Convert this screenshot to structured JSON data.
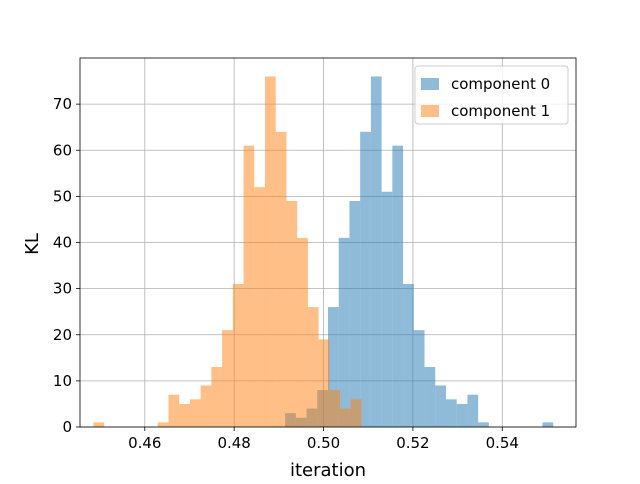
{
  "chart_data": {
    "type": "histogram",
    "title": "",
    "xlabel": "iteration",
    "ylabel": "KL",
    "xlim": [
      0.4455,
      0.5565
    ],
    "ylim": [
      0,
      80
    ],
    "xticks": [
      0.46,
      0.48,
      0.5,
      0.52,
      0.54
    ],
    "xtick_labels": [
      "0.46",
      "0.48",
      "0.50",
      "0.52",
      "0.54"
    ],
    "yticks": [
      0,
      10,
      20,
      30,
      40,
      50,
      60,
      70
    ],
    "ytick_labels": [
      "0",
      "10",
      "20",
      "30",
      "40",
      "50",
      "60",
      "70"
    ],
    "grid": true,
    "legend_position": "top-right",
    "alpha": 0.5,
    "series": [
      {
        "name": "component 0",
        "color": "#1f77b4",
        "bins": [
          {
            "x0": 0.4914,
            "x1": 0.4938,
            "count": 3
          },
          {
            "x0": 0.4938,
            "x1": 0.4962,
            "count": 2
          },
          {
            "x0": 0.4962,
            "x1": 0.4986,
            "count": 4
          },
          {
            "x0": 0.4986,
            "x1": 0.501,
            "count": 8
          },
          {
            "x0": 0.501,
            "x1": 0.5034,
            "count": 26
          },
          {
            "x0": 0.5034,
            "x1": 0.5058,
            "count": 41
          },
          {
            "x0": 0.5058,
            "x1": 0.5082,
            "count": 49
          },
          {
            "x0": 0.5082,
            "x1": 0.5106,
            "count": 64
          },
          {
            "x0": 0.5106,
            "x1": 0.513,
            "count": 76
          },
          {
            "x0": 0.513,
            "x1": 0.5154,
            "count": 51
          },
          {
            "x0": 0.5154,
            "x1": 0.5178,
            "count": 61
          },
          {
            "x0": 0.5178,
            "x1": 0.5202,
            "count": 31
          },
          {
            "x0": 0.5202,
            "x1": 0.5226,
            "count": 21
          },
          {
            "x0": 0.5226,
            "x1": 0.525,
            "count": 13
          },
          {
            "x0": 0.525,
            "x1": 0.5274,
            "count": 9
          },
          {
            "x0": 0.5274,
            "x1": 0.5298,
            "count": 6
          },
          {
            "x0": 0.5298,
            "x1": 0.5322,
            "count": 5
          },
          {
            "x0": 0.5322,
            "x1": 0.5346,
            "count": 7
          },
          {
            "x0": 0.5346,
            "x1": 0.537,
            "count": 1
          },
          {
            "x0": 0.549,
            "x1": 0.5514,
            "count": 1
          }
        ]
      },
      {
        "name": "component 1",
        "color": "#ff7f0e",
        "bins": [
          {
            "x0": 0.4485,
            "x1": 0.4509,
            "count": 1
          },
          {
            "x0": 0.4629,
            "x1": 0.4653,
            "count": 1
          },
          {
            "x0": 0.4653,
            "x1": 0.4677,
            "count": 7
          },
          {
            "x0": 0.4677,
            "x1": 0.4701,
            "count": 5
          },
          {
            "x0": 0.4701,
            "x1": 0.4725,
            "count": 6
          },
          {
            "x0": 0.4725,
            "x1": 0.4749,
            "count": 9
          },
          {
            "x0": 0.4749,
            "x1": 0.4773,
            "count": 13
          },
          {
            "x0": 0.4773,
            "x1": 0.4797,
            "count": 21
          },
          {
            "x0": 0.4797,
            "x1": 0.4821,
            "count": 31
          },
          {
            "x0": 0.4821,
            "x1": 0.4845,
            "count": 61
          },
          {
            "x0": 0.4845,
            "x1": 0.4869,
            "count": 52
          },
          {
            "x0": 0.4869,
            "x1": 0.4893,
            "count": 76
          },
          {
            "x0": 0.4893,
            "x1": 0.4917,
            "count": 64
          },
          {
            "x0": 0.4917,
            "x1": 0.4941,
            "count": 49
          },
          {
            "x0": 0.4941,
            "x1": 0.4965,
            "count": 41
          },
          {
            "x0": 0.4965,
            "x1": 0.4989,
            "count": 26
          },
          {
            "x0": 0.4989,
            "x1": 0.5013,
            "count": 19
          },
          {
            "x0": 0.5013,
            "x1": 0.5037,
            "count": 8
          },
          {
            "x0": 0.5037,
            "x1": 0.5061,
            "count": 4
          },
          {
            "x0": 0.5061,
            "x1": 0.5085,
            "count": 6
          }
        ]
      }
    ]
  }
}
